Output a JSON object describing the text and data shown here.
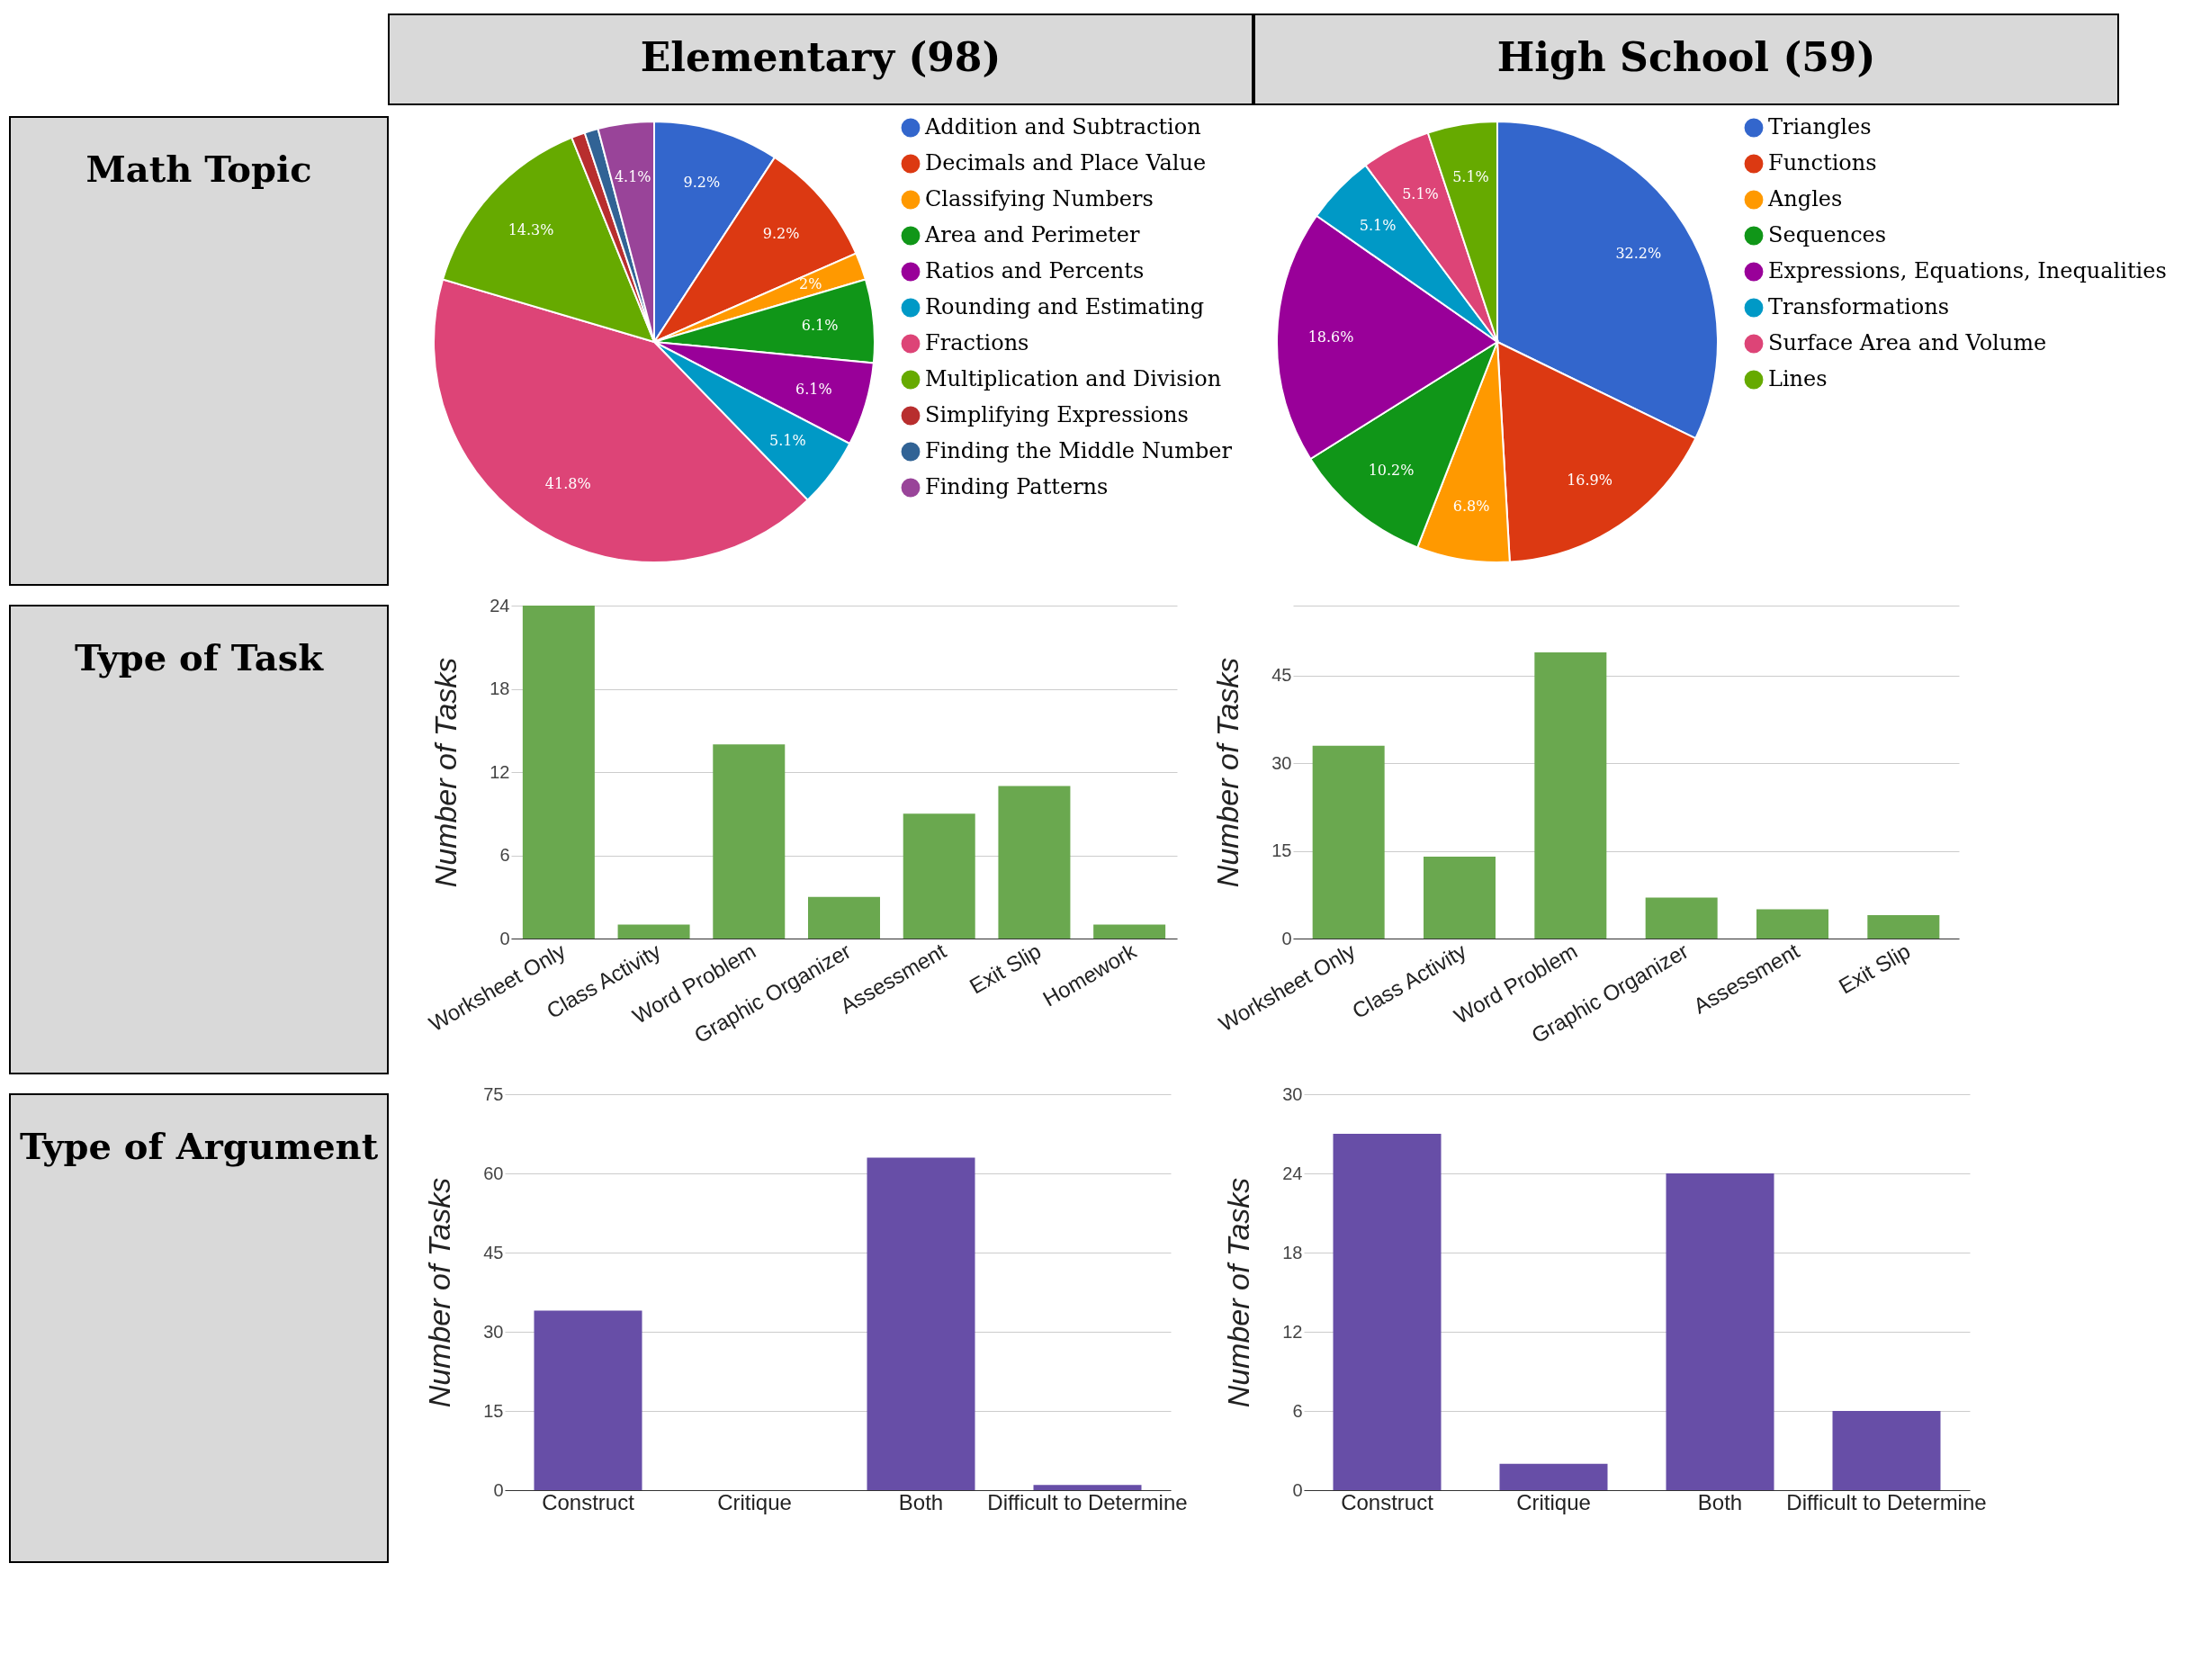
{
  "chart_data": [
    {
      "type": "other",
      "annotations": [
        "Elementary (98)",
        "High School (59)",
        "Math Topic",
        "Type of Task",
        "Type of Argument"
      ]
    },
    {
      "type": "pie",
      "categories": [
        "Addition and Subtraction",
        "Decimals and Place Value",
        "Classifying Numbers",
        "Area and Perimeter",
        "Ratios and Percents",
        "Rounding and Estimating",
        "Fractions",
        "Multiplication and Division",
        "Simplifying Expressions",
        "Finding the Middle Number",
        "Finding Patterns"
      ],
      "values": [
        9.2,
        9.2,
        2,
        6.1,
        6.1,
        5.1,
        41.8,
        14.3,
        1,
        1,
        4.1
      ],
      "colors": [
        "#3366cc",
        "#dc3912",
        "#ff9900",
        "#109618",
        "#990099",
        "#0099c6",
        "#dd4477",
        "#66aa00",
        "#b82e2e",
        "#316395",
        "#994499"
      ],
      "value_labels": [
        "9.2%",
        "9.2%",
        "2%",
        "6.1%",
        "6.1%",
        "5.1%",
        "41.8%",
        "14.3%",
        null,
        null,
        "4.1%"
      ],
      "legend": "right"
    },
    {
      "type": "pie",
      "categories": [
        "Triangles",
        "Functions",
        "Angles",
        "Sequences",
        "Expressions, Equations, Inequalities",
        "Transformations",
        "Surface Area and Volume",
        "Lines"
      ],
      "values": [
        32.2,
        16.9,
        6.8,
        10.2,
        18.6,
        5.1,
        5.1,
        5.1
      ],
      "colors": [
        "#3366cc",
        "#dc3912",
        "#ff9900",
        "#109618",
        "#990099",
        "#0099c6",
        "#dd4477",
        "#66aa00"
      ],
      "value_labels": [
        "32.2%",
        "16.9%",
        "6.8%",
        "10.2%",
        "18.6%",
        "5.1%",
        "5.1%",
        "5.1%"
      ],
      "legend": "right"
    },
    {
      "type": "bar",
      "categories": [
        "Worksheet Only",
        "Class Activity",
        "Word Problem",
        "Graphic Organizer",
        "Assessment",
        "Exit Slip",
        "Homework"
      ],
      "series": [
        {
          "color": "#6aa84f",
          "values": [
            24,
            1,
            14,
            3,
            9,
            11,
            1
          ]
        }
      ],
      "ylabel": "Number of Tasks",
      "ylim": [
        0,
        24
      ],
      "yticks": [
        0,
        6,
        12,
        18,
        24
      ],
      "grid": "y"
    },
    {
      "type": "bar",
      "categories": [
        "Worksheet Only",
        "Class Activity",
        "Word Problem",
        "Graphic Organizer",
        "Assessment",
        "Exit Slip"
      ],
      "series": [
        {
          "color": "#6aa84f",
          "values": [
            33,
            14,
            49,
            7,
            5,
            4
          ]
        }
      ],
      "ylabel": "Number of Tasks",
      "ylim": [
        0,
        57
      ],
      "yticks": [
        0,
        15,
        30,
        45,
        {
          "value": 57,
          "label": null
        }
      ],
      "grid": "y"
    },
    {
      "type": "bar",
      "categories": [
        "Construct",
        "Critique",
        "Both",
        "Difficult to Determine"
      ],
      "series": [
        {
          "color": "#674ea7",
          "values": [
            34,
            0,
            63,
            1
          ]
        }
      ],
      "ylabel": "Number of Tasks",
      "ylim": [
        0,
        75
      ],
      "yticks": [
        0,
        15,
        30,
        45,
        60,
        75
      ],
      "grid": "y"
    },
    {
      "type": "bar",
      "categories": [
        "Construct",
        "Critique",
        "Both",
        "Difficult to Determine"
      ],
      "series": [
        {
          "color": "#674ea7",
          "values": [
            27,
            2,
            24,
            6
          ]
        }
      ],
      "ylabel": "Number of Tasks",
      "ylim": [
        0,
        30
      ],
      "yticks": [
        0,
        6,
        12,
        18,
        24,
        30
      ],
      "grid": "y"
    }
  ]
}
